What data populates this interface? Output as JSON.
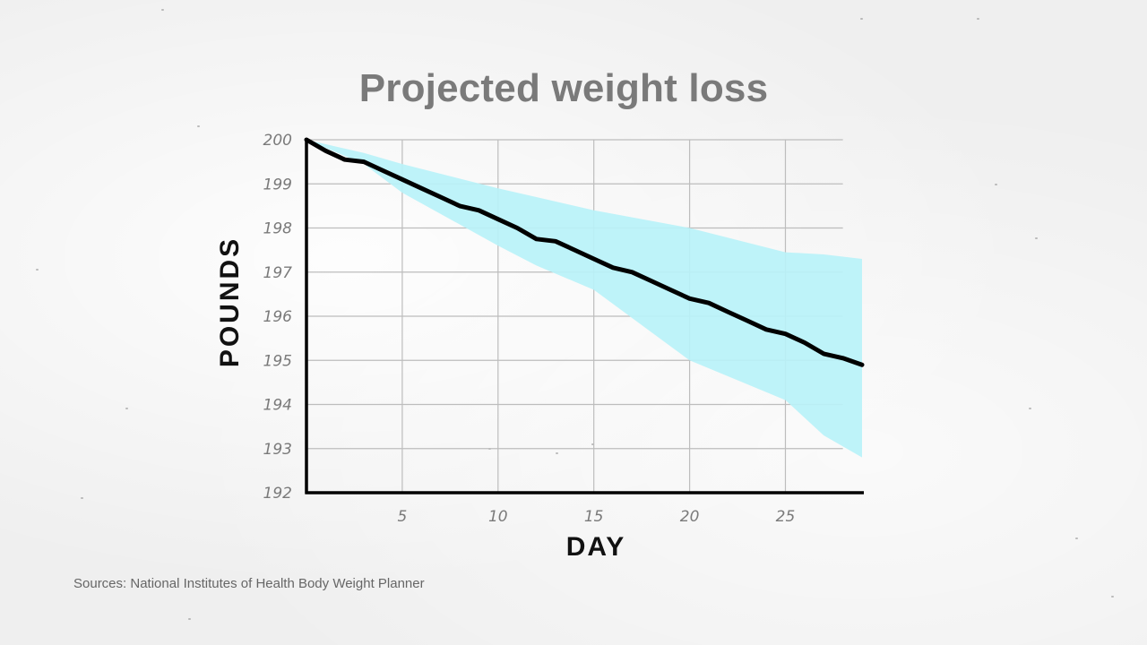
{
  "title": "Projected weight loss",
  "source": "Sources: National Institutes of Health Body Weight Planner",
  "chart_data": {
    "type": "line",
    "title": "Projected weight loss",
    "xlabel": "DAY",
    "ylabel": "POUNDS",
    "xlim": [
      0,
      29
    ],
    "ylim": [
      192,
      200
    ],
    "xticks": [
      5,
      10,
      15,
      20,
      25
    ],
    "yticks": [
      192,
      193,
      194,
      195,
      196,
      197,
      198,
      199,
      200
    ],
    "grid": true,
    "colors": {
      "line": "#000000",
      "band": "#b8f2f8",
      "grid": "#bdbdbd"
    },
    "series": [
      {
        "x": [
          0,
          1,
          2,
          3,
          4,
          5,
          6,
          7,
          8,
          9,
          10,
          11,
          12,
          13,
          14,
          15,
          16,
          17,
          18,
          19,
          20,
          21,
          22,
          23,
          24,
          25,
          26,
          27,
          28,
          29
        ],
        "values": [
          200,
          199.75,
          199.55,
          199.5,
          199.3,
          199.1,
          198.9,
          198.7,
          198.5,
          198.4,
          198.2,
          198.0,
          197.75,
          197.7,
          197.5,
          197.3,
          197.1,
          197.0,
          196.8,
          196.6,
          196.4,
          196.3,
          196.1,
          195.9,
          195.7,
          195.6,
          195.4,
          195.15,
          195.05,
          194.9
        ]
      }
    ],
    "band": {
      "x": [
        0,
        3,
        5,
        10,
        12,
        15,
        20,
        25,
        27,
        29
      ],
      "upper": [
        200,
        199.7,
        199.45,
        198.9,
        198.7,
        198.4,
        198.0,
        197.45,
        197.4,
        197.3
      ],
      "lower": [
        200,
        199.45,
        198.8,
        197.6,
        197.15,
        196.6,
        195.0,
        194.1,
        193.3,
        192.8
      ]
    }
  }
}
